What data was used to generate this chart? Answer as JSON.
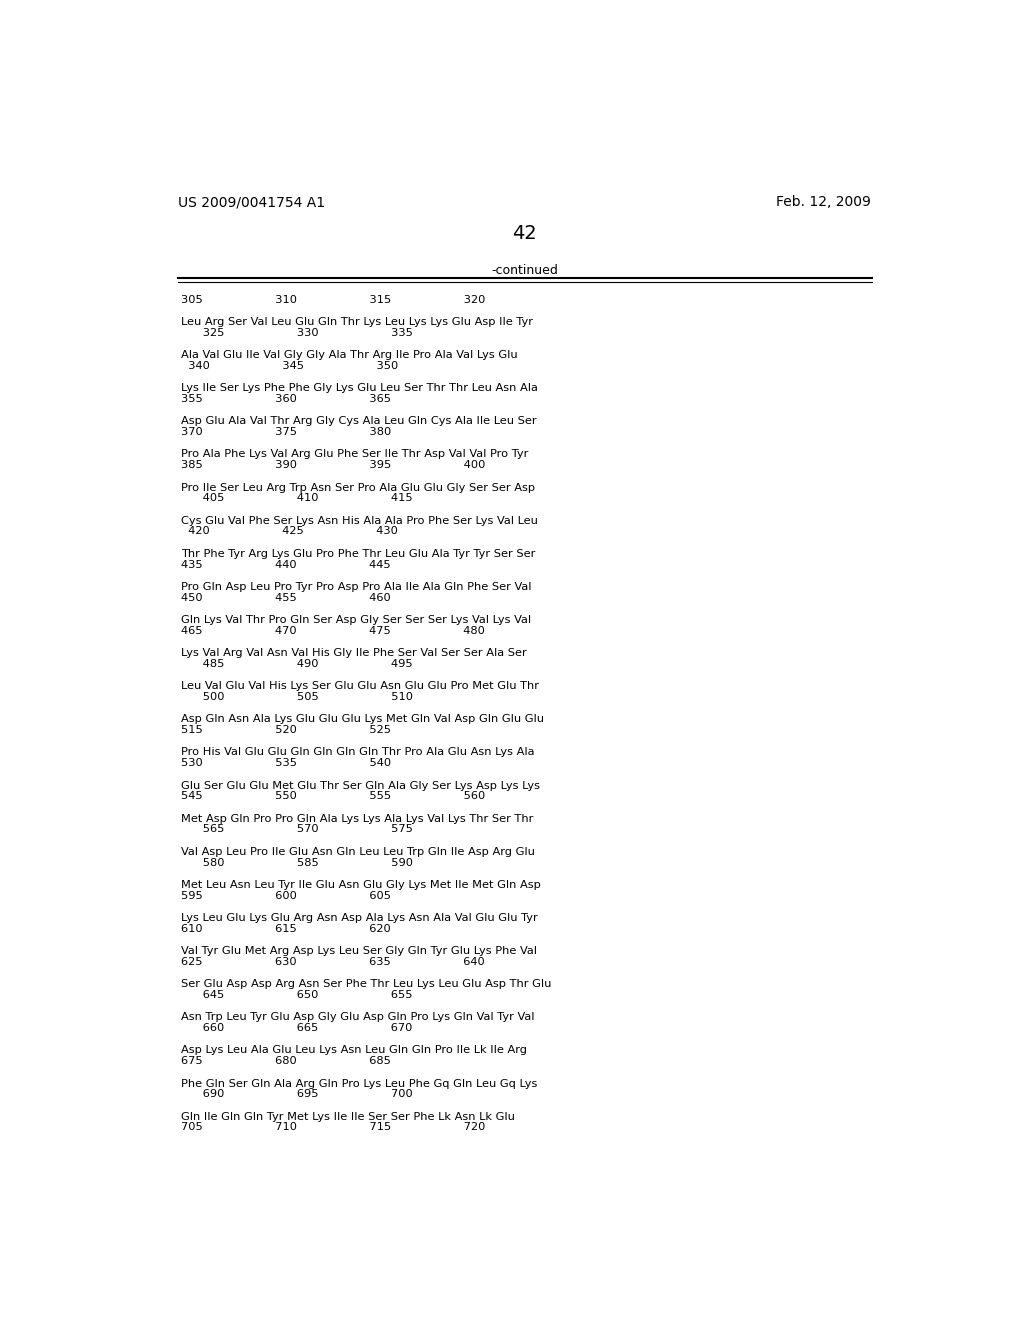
{
  "header_left": "US 2009/0041754 A1",
  "header_right": "Feb. 12, 2009",
  "page_number": "42",
  "continued_label": "-continued",
  "background_color": "#ffffff",
  "text_color": "#000000",
  "lines": [
    [
      1143,
      "305                    310                    315                    320"
    ],
    [
      1114,
      "Leu Arg Ser Val Leu Glu Gln Thr Lys Leu Lys Lys Glu Asp Ile Tyr"
    ],
    [
      1100,
      "      325                    330                    335"
    ],
    [
      1071,
      "Ala Val Glu Ile Val Gly Gly Ala Thr Arg Ile Pro Ala Val Lys Glu"
    ],
    [
      1057,
      "  340                    345                    350"
    ],
    [
      1028,
      "Lys Ile Ser Lys Phe Phe Gly Lys Glu Leu Ser Thr Thr Leu Asn Ala"
    ],
    [
      1014,
      "355                    360                    365"
    ],
    [
      985,
      "Asp Glu Ala Val Thr Arg Gly Cys Ala Leu Gln Cys Ala Ile Leu Ser"
    ],
    [
      971,
      "370                    375                    380"
    ],
    [
      942,
      "Pro Ala Phe Lys Val Arg Glu Phe Ser Ile Thr Asp Val Val Pro Tyr"
    ],
    [
      928,
      "385                    390                    395                    400"
    ],
    [
      899,
      "Pro Ile Ser Leu Arg Trp Asn Ser Pro Ala Glu Glu Gly Ser Ser Asp"
    ],
    [
      885,
      "      405                    410                    415"
    ],
    [
      856,
      "Cys Glu Val Phe Ser Lys Asn His Ala Ala Pro Phe Ser Lys Val Leu"
    ],
    [
      842,
      "  420                    425                    430"
    ],
    [
      813,
      "Thr Phe Tyr Arg Lys Glu Pro Phe Thr Leu Glu Ala Tyr Tyr Ser Ser"
    ],
    [
      799,
      "435                    440                    445"
    ],
    [
      770,
      "Pro Gln Asp Leu Pro Tyr Pro Asp Pro Ala Ile Ala Gln Phe Ser Val"
    ],
    [
      756,
      "450                    455                    460"
    ],
    [
      727,
      "Gln Lys Val Thr Pro Gln Ser Asp Gly Ser Ser Ser Lys Val Lys Val"
    ],
    [
      713,
      "465                    470                    475                    480"
    ],
    [
      684,
      "Lys Val Arg Val Asn Val His Gly Ile Phe Ser Val Ser Ser Ala Ser"
    ],
    [
      670,
      "      485                    490                    495"
    ],
    [
      641,
      "Leu Val Glu Val His Lys Ser Glu Glu Asn Glu Glu Pro Met Glu Thr"
    ],
    [
      627,
      "      500                    505                    510"
    ],
    [
      598,
      "Asp Gln Asn Ala Lys Glu Glu Glu Lys Met Gln Val Asp Gln Glu Glu"
    ],
    [
      584,
      "515                    520                    525"
    ],
    [
      555,
      "Pro His Val Glu Glu Gln Gln Gln Gln Thr Pro Ala Glu Asn Lys Ala"
    ],
    [
      541,
      "530                    535                    540"
    ],
    [
      512,
      "Glu Ser Glu Glu Met Glu Thr Ser Gln Ala Gly Ser Lys Asp Lys Lys"
    ],
    [
      498,
      "545                    550                    555                    560"
    ],
    [
      469,
      "Met Asp Gln Pro Pro Gln Ala Lys Lys Ala Lys Val Lys Thr Ser Thr"
    ],
    [
      455,
      "      565                    570                    575"
    ],
    [
      426,
      "Val Asp Leu Pro Ile Glu Asn Gln Leu Leu Trp Gln Ile Asp Arg Glu"
    ],
    [
      412,
      "      580                    585                    590"
    ],
    [
      383,
      "Met Leu Asn Leu Tyr Ile Glu Asn Glu Gly Lys Met Ile Met Gln Asp"
    ],
    [
      369,
      "595                    600                    605"
    ],
    [
      340,
      "Lys Leu Glu Lys Glu Arg Asn Asp Ala Lys Asn Ala Val Glu Glu Tyr"
    ],
    [
      326,
      "610                    615                    620"
    ],
    [
      297,
      "Val Tyr Glu Met Arg Asp Lys Leu Ser Gly Gln Tyr Glu Lys Phe Val"
    ],
    [
      283,
      "625                    630                    635                    640"
    ],
    [
      254,
      "Ser Glu Asp Asp Arg Asn Ser Phe Thr Leu Lys Leu Glu Asp Thr Glu"
    ],
    [
      240,
      "      645                    650                    655"
    ],
    [
      211,
      "Asn Trp Leu Tyr Glu Asp Gly Glu Asp Gln Pro Lys Gln Val Tyr Val"
    ],
    [
      197,
      "      660                    665                    670"
    ],
    [
      168,
      "Asp Lys Leu Ala Glu Leu Lys Asn Leu Gln Gln Pro Ile Lk Ile Arg"
    ],
    [
      154,
      "675                    680                    685"
    ],
    [
      125,
      "Phe Gln Ser Gln Ala Arg Gln Pro Lys Leu Phe Gq Gln Leu Gq Lys"
    ],
    [
      111,
      "      690                    695                    700"
    ],
    [
      82,
      "Gln Ile Gln Gln Tyr Met Lys Ile Ile Ser Ser Phe Lk Asn Lk Glu"
    ],
    [
      68,
      "705                    710                    715                    720"
    ]
  ]
}
